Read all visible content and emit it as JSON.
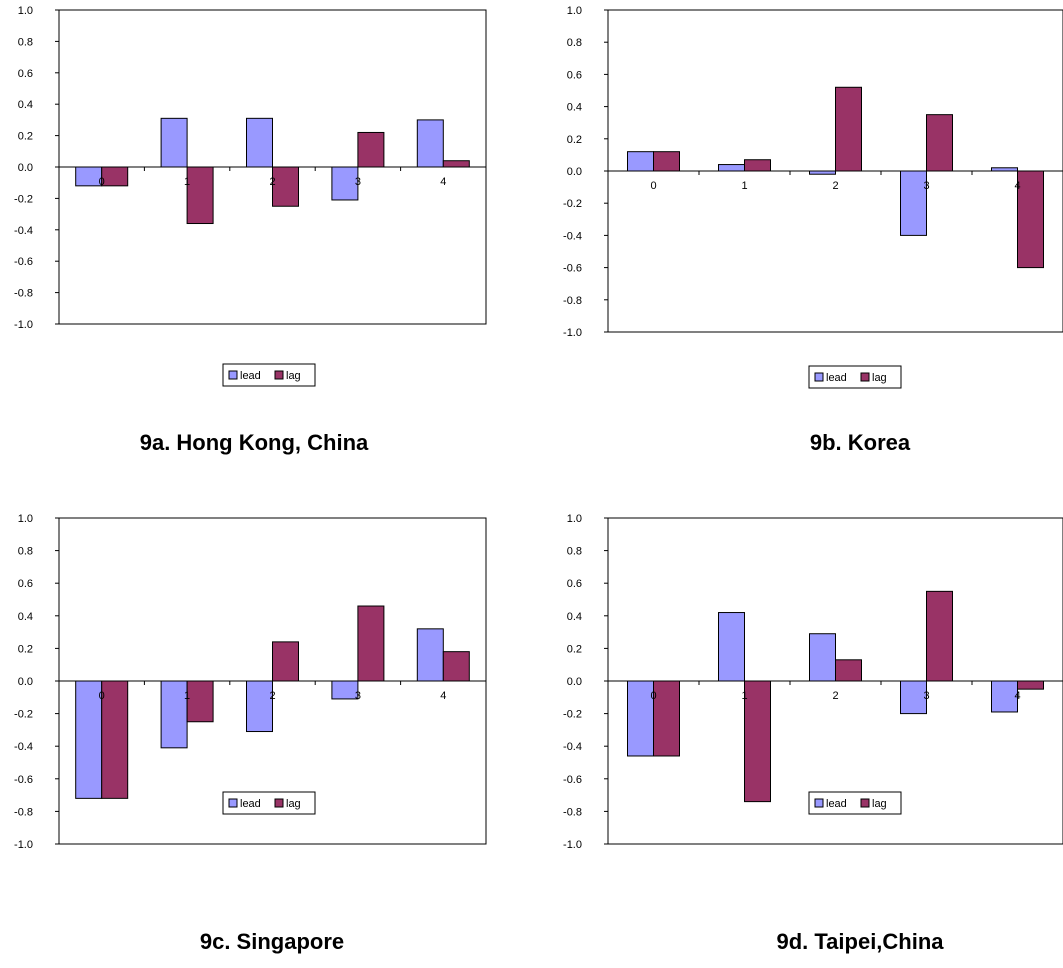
{
  "colors": {
    "lead": "#9999FF",
    "lag": "#993366",
    "axis": "#000000",
    "background": "#FFFFFF"
  },
  "chart_data": [
    {
      "type": "bar",
      "title": "9a.  Hong Kong, China",
      "xlabel": "",
      "ylabel": "",
      "categories": [
        "0",
        "1",
        "2",
        "3",
        "4"
      ],
      "ylim": [
        -1.0,
        1.0
      ],
      "yticks": [
        "1.0",
        "0.8",
        "0.6",
        "0.4",
        "0.2",
        "0.0",
        "-0.2",
        "-0.4",
        "-0.6",
        "-0.8",
        "-1.0"
      ],
      "grid": false,
      "legend": "bottom",
      "series": [
        {
          "name": "lead",
          "values": [
            -0.12,
            0.31,
            0.31,
            -0.21,
            0.3
          ]
        },
        {
          "name": "lag",
          "values": [
            -0.12,
            -0.36,
            -0.25,
            0.22,
            0.04
          ]
        }
      ]
    },
    {
      "type": "bar",
      "title": "9b. Korea",
      "xlabel": "",
      "ylabel": "",
      "categories": [
        "0",
        "1",
        "2",
        "3",
        "4"
      ],
      "ylim": [
        -1.0,
        1.0
      ],
      "yticks": [
        "1.0",
        "0.8",
        "0.6",
        "0.4",
        "0.2",
        "0.0",
        "-0.2",
        "-0.4",
        "-0.6",
        "-0.8",
        "-1.0"
      ],
      "grid": false,
      "legend": "bottom",
      "series": [
        {
          "name": "lead",
          "values": [
            0.12,
            0.04,
            -0.02,
            -0.4,
            0.02
          ]
        },
        {
          "name": "lag",
          "values": [
            0.12,
            0.07,
            0.52,
            0.35,
            -0.6
          ]
        }
      ]
    },
    {
      "type": "bar",
      "title": "9c. Singapore",
      "xlabel": "",
      "ylabel": "",
      "categories": [
        "0",
        "1",
        "2",
        "3",
        "4"
      ],
      "ylim": [
        -1.0,
        1.0
      ],
      "yticks": [
        "1.0",
        "0.8",
        "0.6",
        "0.4",
        "0.2",
        "0.0",
        "-0.2",
        "-0.4",
        "-0.6",
        "-0.8",
        "-1.0"
      ],
      "grid": false,
      "legend": "bottom",
      "series": [
        {
          "name": "lead",
          "values": [
            -0.72,
            -0.41,
            -0.31,
            -0.11,
            0.32
          ]
        },
        {
          "name": "lag",
          "values": [
            -0.72,
            -0.25,
            0.24,
            0.46,
            0.18
          ]
        }
      ]
    },
    {
      "type": "bar",
      "title": "9d. Taipei,China",
      "xlabel": "",
      "ylabel": "",
      "categories": [
        "0",
        "1",
        "2",
        "3",
        "4"
      ],
      "ylim": [
        -1.0,
        1.0
      ],
      "yticks": [
        "1.0",
        "0.8",
        "0.6",
        "0.4",
        "0.2",
        "0.0",
        "-0.2",
        "-0.4",
        "-0.6",
        "-0.8",
        "-1.0"
      ],
      "grid": false,
      "legend": "bottom",
      "series": [
        {
          "name": "lead",
          "values": [
            -0.46,
            0.42,
            0.29,
            -0.2,
            -0.19
          ]
        },
        {
          "name": "lag",
          "values": [
            -0.46,
            -0.74,
            0.13,
            0.55,
            -0.05
          ]
        }
      ]
    }
  ]
}
